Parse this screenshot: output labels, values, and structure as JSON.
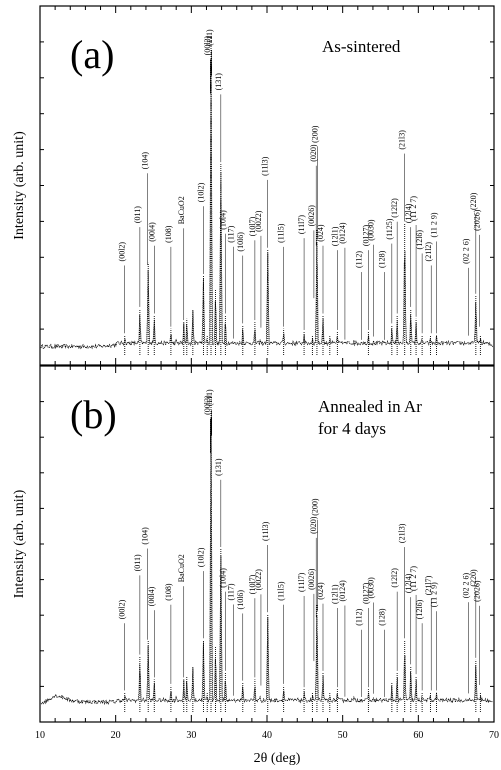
{
  "chart_data": {
    "type": "line",
    "xlabel": "2θ (deg)",
    "xlim": [
      10,
      70
    ],
    "x_ticks": [
      10,
      20,
      30,
      40,
      50,
      60,
      70
    ],
    "panels": [
      {
        "panel_label": "(a)",
        "annotation_lines": [
          "As-sintered"
        ],
        "ylabel": "Intensity (arb. unit)",
        "ylim": [
          0,
          100
        ],
        "series": [
          {
            "x": [
              10,
              12,
              14,
              16,
              18,
              20,
              21.2,
              22,
              23.2,
              24.3,
              25.1,
              26,
              27.3,
              28,
              29,
              29.4,
              30.2,
              31,
              31.6,
              32.1,
              32.6,
              33.2,
              33.9,
              34.5,
              35.5,
              36.8,
              37.5,
              38.4,
              39.1,
              40.1,
              41,
              42.2,
              43.5,
              44.9,
              46,
              46.6,
              47.4,
              48.3,
              49.3,
              50.2,
              51.5,
              52.5,
              53.4,
              54.1,
              55.5,
              56.5,
              57.2,
              58.2,
              59,
              59.7,
              60.5,
              61.6,
              62.4,
              63.5,
              65,
              66.5,
              67.6,
              68.2,
              69,
              70
            ],
            "y": [
              2,
              2,
              2,
              2,
              2,
              2.5,
              6,
              3,
              14,
              28,
              12,
              4,
              8,
              5,
              10,
              11,
              14,
              5,
              24,
              6,
              97,
              20,
              58,
              12,
              4,
              9,
              4,
              10,
              5,
              32,
              4,
              8,
              3,
              7,
              6,
              38,
              12,
              6,
              7,
              4,
              5,
              4,
              7,
              5,
              4,
              9,
              12,
              40,
              14,
              11,
              6,
              6,
              6,
              4,
              3,
              4,
              18,
              6,
              3,
              2
            ]
          }
        ],
        "peak_labels": [
          {
            "label": "(00l2)",
            "x": 21.2
          },
          {
            "label": "(011)",
            "x": 23.2
          },
          {
            "label": "(104)",
            "x": 24.2
          },
          {
            "label": "(00l4)",
            "x": 25.1
          },
          {
            "label": "(108)",
            "x": 27.3
          },
          {
            "label": "BaCuO2",
            "x": 29.0
          },
          {
            "label": "(10l2)",
            "x": 31.6
          },
          {
            "label": "(00l3)",
            "x": 32.5
          },
          {
            "label": "(111)",
            "x": 32.7
          },
          {
            "label": "(131)",
            "x": 33.9
          },
          {
            "label": "(10l4)",
            "x": 34.5
          },
          {
            "label": "(117)",
            "x": 35.6
          },
          {
            "label": "(10l6)",
            "x": 36.8
          },
          {
            "label": "(10l7)",
            "x": 38.4
          },
          {
            "label": "(0022)",
            "x": 39.2
          },
          {
            "label": "(11l3)",
            "x": 40.1
          },
          {
            "label": "(11l5)",
            "x": 42.2
          },
          {
            "label": "(11l7)",
            "x": 44.9
          },
          {
            "label": "(0026)",
            "x": 46.2
          },
          {
            "label": "(020)",
            "x": 46.5
          },
          {
            "label": "(200)",
            "x": 46.7
          },
          {
            "label": "(024)",
            "x": 47.4
          },
          {
            "label": "(12l1)",
            "x": 49.3
          },
          {
            "label": "(0124)",
            "x": 50.3
          },
          {
            "label": "(112)",
            "x": 52.5
          },
          {
            "label": "(0127)",
            "x": 53.4
          },
          {
            "label": "(0030)",
            "x": 54.1
          },
          {
            "label": "(128)",
            "x": 55.5
          },
          {
            "label": "(1125)",
            "x": 56.5
          },
          {
            "label": "(12l2)",
            "x": 57.2
          },
          {
            "label": "(21l3)",
            "x": 58.2
          },
          {
            "label": "(12l4)",
            "x": 59.0
          },
          {
            "label": "(11 2 7)",
            "x": 59.7
          },
          {
            "label": "(21l2)",
            "x": 61.7
          },
          {
            "label": "(12l6)",
            "x": 60.5
          },
          {
            "label": "(11 2 9)",
            "x": 62.4
          },
          {
            "label": "(02 2 6)",
            "x": 66.6
          },
          {
            "label": "(220)",
            "x": 67.6
          },
          {
            "label": "(2026)",
            "x": 68.1
          }
        ]
      },
      {
        "panel_label": "(b)",
        "annotation_lines": [
          "Annealed in Ar",
          "for 4 days"
        ],
        "ylabel": "Intensity (arb. unit)",
        "ylim": [
          0,
          100
        ],
        "series": [
          {
            "x": [
              10,
              11,
              12,
              13,
              14,
              16,
              18,
              20,
              21.2,
              22,
              23.2,
              24.3,
              25.1,
              26,
              27.3,
              28,
              29,
              29.4,
              30.2,
              31,
              31.6,
              32.1,
              32.6,
              33.2,
              33.9,
              34.5,
              35.5,
              36.8,
              37.5,
              38.4,
              39.1,
              40.1,
              41,
              42.2,
              43.5,
              44.9,
              46,
              46.6,
              47.4,
              48.3,
              49.3,
              50.2,
              51.5,
              52.5,
              53.4,
              54.1,
              55.5,
              56.5,
              57.2,
              58.2,
              59,
              59.7,
              60.5,
              61.6,
              62.4,
              63.5,
              65,
              66.5,
              67.6,
              68.2,
              69,
              70
            ],
            "y": [
              2,
              3,
              4.5,
              4,
              3,
              2.5,
              2.5,
              2.5,
              6,
              3,
              17,
              22,
              10,
              4,
              8,
              5,
              10,
              11,
              14,
              5,
              22,
              6,
              97,
              20,
              50,
              12,
              4,
              9,
              4,
              10,
              5,
              30,
              4,
              8,
              3,
              7,
              6,
              33,
              12,
              6,
              7,
              4,
              5,
              4,
              7,
              5,
              4,
              9,
              12,
              22,
              14,
              11,
              6,
              6,
              6,
              4,
              3,
              4,
              16,
              6,
              3,
              2
            ]
          }
        ],
        "peak_labels": [
          {
            "label": "(00l2)",
            "x": 21.2
          },
          {
            "label": "(011)",
            "x": 23.2
          },
          {
            "label": "(104)",
            "x": 24.2
          },
          {
            "label": "(00l4)",
            "x": 25.1
          },
          {
            "label": "(108)",
            "x": 27.3
          },
          {
            "label": "BaCuO2",
            "x": 29.0
          },
          {
            "label": "(10l2)",
            "x": 31.6
          },
          {
            "label": "(00l3)",
            "x": 32.5
          },
          {
            "label": "(111)",
            "x": 32.7
          },
          {
            "label": "(131)",
            "x": 33.9
          },
          {
            "label": "(10l4)",
            "x": 34.5
          },
          {
            "label": "(117)",
            "x": 35.6
          },
          {
            "label": "(10l6)",
            "x": 36.8
          },
          {
            "label": "(10l7)",
            "x": 38.4
          },
          {
            "label": "(0022)",
            "x": 39.2
          },
          {
            "label": "(11l3)",
            "x": 40.1
          },
          {
            "label": "(11l5)",
            "x": 42.2
          },
          {
            "label": "(11l7)",
            "x": 44.9
          },
          {
            "label": "(0026)",
            "x": 46.2
          },
          {
            "label": "(020)",
            "x": 46.5
          },
          {
            "label": "(200)",
            "x": 46.7
          },
          {
            "label": "(024)",
            "x": 47.4
          },
          {
            "label": "(12l1)",
            "x": 49.3
          },
          {
            "label": "(0124)",
            "x": 50.3
          },
          {
            "label": "(112)",
            "x": 52.5
          },
          {
            "label": "(0127)",
            "x": 53.4
          },
          {
            "label": "(0030)",
            "x": 54.1
          },
          {
            "label": "(128)",
            "x": 55.5
          },
          {
            "label": "(12l2)",
            "x": 57.2
          },
          {
            "label": "(21l3)",
            "x": 58.2
          },
          {
            "label": "(12l4)",
            "x": 59.0
          },
          {
            "label": "(11 2 7)",
            "x": 59.7
          },
          {
            "label": "(21l7)",
            "x": 61.7
          },
          {
            "label": "(12l6)",
            "x": 60.5
          },
          {
            "label": "(11 2 9)",
            "x": 62.4
          },
          {
            "label": "(02 2 6)",
            "x": 66.6
          },
          {
            "label": "(220)",
            "x": 67.6
          },
          {
            "label": "(2026)",
            "x": 68.1
          }
        ]
      }
    ]
  }
}
